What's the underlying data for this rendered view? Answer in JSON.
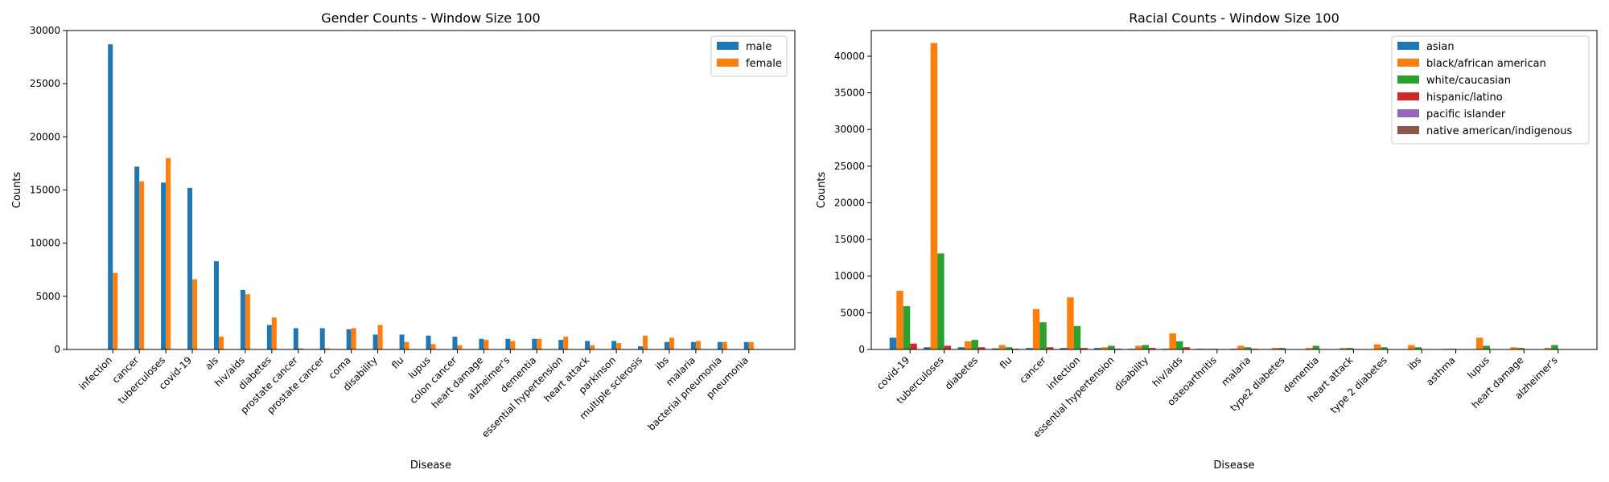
{
  "chart_data": [
    {
      "type": "bar",
      "title": "Gender Counts - Window Size 100",
      "xlabel": "Disease",
      "ylabel": "Counts",
      "ylim": [
        0,
        30000
      ],
      "yticks": [
        0,
        5000,
        10000,
        15000,
        20000,
        25000,
        30000
      ],
      "legend_position": "top-right",
      "categories": [
        "infection",
        "cancer",
        "tuberculoses",
        "covid-19",
        "als",
        "hiv/aids",
        "diabetes",
        "prostate cancer",
        "prostate cancer",
        "coma",
        "disability",
        "flu",
        "lupus",
        "colon cancer",
        "heart damage",
        "alzheimer's",
        "dementia",
        "essential hypertension",
        "heart attack",
        "parkinson",
        "multiple sclerosis",
        "ibs",
        "malaria",
        "bacterial pneumonia",
        "pneumonia"
      ],
      "series": [
        {
          "name": "male",
          "color": "#1f77b4",
          "values": [
            28700,
            17200,
            15700,
            15200,
            8300,
            5600,
            2300,
            2000,
            2000,
            1900,
            1400,
            1400,
            1300,
            1200,
            1000,
            1000,
            1000,
            900,
            800,
            800,
            300,
            700,
            700,
            700,
            700
          ]
        },
        {
          "name": "female",
          "color": "#ff7f0e",
          "values": [
            7200,
            15800,
            18000,
            6600,
            1200,
            5200,
            3000,
            100,
            100,
            2000,
            2300,
            700,
            500,
            400,
            900,
            800,
            1000,
            1200,
            400,
            600,
            1300,
            1100,
            800,
            700,
            700
          ]
        }
      ]
    },
    {
      "type": "bar",
      "title": "Racial Counts - Window Size 100",
      "xlabel": "Disease",
      "ylabel": "Counts",
      "ylim": [
        0,
        43500
      ],
      "yticks": [
        0,
        5000,
        10000,
        15000,
        20000,
        25000,
        30000,
        35000,
        40000
      ],
      "legend_position": "top-right",
      "categories": [
        "covid-19",
        "tuberculoses",
        "diabetes",
        "flu",
        "cancer",
        "infection",
        "essential hypertension",
        "disability",
        "hiv/aids",
        "osteoarthritis",
        "malaria",
        "type2 diabetes",
        "dementia",
        "heart attack",
        "type 2 diabetes",
        "ibs",
        "asthma",
        "lupus",
        "heart damage",
        "alzheimer's"
      ],
      "series": [
        {
          "name": "asian",
          "color": "#1f77b4",
          "values": [
            1600,
            300,
            300,
            150,
            200,
            200,
            200,
            100,
            100,
            50,
            100,
            50,
            50,
            50,
            50,
            50,
            50,
            50,
            50,
            50
          ]
        },
        {
          "name": "black/african american",
          "color": "#ff7f0e",
          "values": [
            8000,
            41800,
            1100,
            600,
            5500,
            7100,
            300,
            500,
            2200,
            100,
            500,
            200,
            200,
            200,
            700,
            600,
            100,
            1600,
            300,
            200
          ]
        },
        {
          "name": "white/caucasian",
          "color": "#2ca02c",
          "values": [
            5900,
            13100,
            1300,
            300,
            3700,
            3200,
            500,
            600,
            1100,
            100,
            300,
            200,
            500,
            200,
            300,
            300,
            100,
            500,
            200,
            600
          ]
        },
        {
          "name": "hispanic/latino",
          "color": "#d62728",
          "values": [
            800,
            500,
            300,
            100,
            300,
            200,
            100,
            200,
            300,
            50,
            100,
            50,
            50,
            50,
            50,
            50,
            50,
            50,
            50,
            50
          ]
        },
        {
          "name": "pacific islander",
          "color": "#9467bd",
          "values": [
            50,
            50,
            50,
            50,
            50,
            50,
            50,
            50,
            50,
            50,
            50,
            50,
            50,
            50,
            50,
            50,
            50,
            50,
            50,
            50
          ]
        },
        {
          "name": "native american/indigenous",
          "color": "#8c564b",
          "values": [
            100,
            100,
            100,
            50,
            100,
            100,
            50,
            50,
            100,
            50,
            50,
            50,
            50,
            50,
            50,
            50,
            50,
            50,
            50,
            50
          ]
        }
      ]
    }
  ]
}
